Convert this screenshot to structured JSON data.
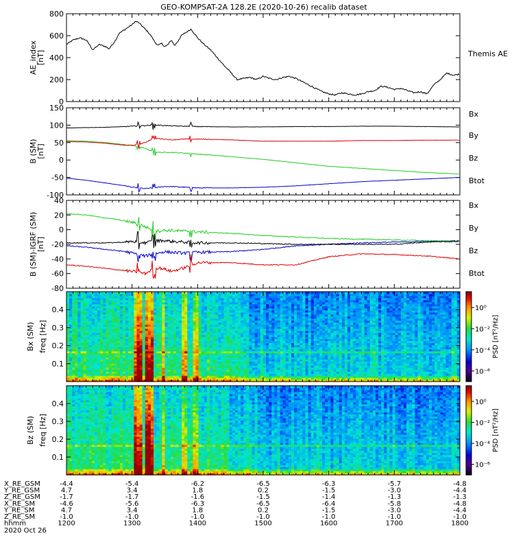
{
  "title": "GEO-KOMPSAT-2A 128.2E (2020-10-26) recalib dataset",
  "colors": {
    "bx": "#0000cc",
    "by": "#22cc22",
    "bz": "#dd0000",
    "btot": "#000000"
  },
  "chart_data": [
    {
      "type": "line",
      "name": "ae_index",
      "ylabel_line1": "AE_index",
      "ylabel_line2": "[nT]",
      "ylim": [
        0,
        800
      ],
      "yticks": [
        "0",
        "200",
        "400",
        "600",
        "800"
      ],
      "legend": [
        "Themis AE"
      ],
      "series": [
        {
          "name": "Themis AE",
          "color": "#000000",
          "x": [
            1200,
            1210,
            1220,
            1230,
            1235,
            1240,
            1250,
            1260,
            1265,
            1270,
            1275,
            1280,
            1290,
            1300,
            1305,
            1310,
            1315,
            1320,
            1325,
            1330,
            1335,
            1340,
            1345,
            1350,
            1355,
            1360,
            1365,
            1370,
            1375,
            1380,
            1385,
            1390,
            1395,
            1400,
            1410,
            1420,
            1430,
            1440,
            1450,
            1460,
            1470,
            1480,
            1490,
            1500,
            1510,
            1520,
            1530,
            1540,
            1550,
            1560,
            1570,
            1580,
            1590,
            1600,
            1610,
            1620,
            1630,
            1640,
            1650,
            1660,
            1670,
            1680,
            1690,
            1700,
            1710,
            1720,
            1730,
            1740,
            1750,
            1760,
            1770,
            1780,
            1790,
            1800
          ],
          "values": [
            520,
            560,
            580,
            560,
            520,
            470,
            520,
            500,
            480,
            520,
            560,
            620,
            660,
            700,
            730,
            720,
            690,
            660,
            630,
            590,
            540,
            510,
            530,
            500,
            520,
            560,
            510,
            550,
            600,
            620,
            640,
            660,
            620,
            580,
            520,
            470,
            400,
            330,
            270,
            200,
            210,
            220,
            200,
            230,
            210,
            200,
            220,
            230,
            210,
            180,
            150,
            120,
            90,
            70,
            60,
            80,
            70,
            60,
            70,
            90,
            100,
            140,
            130,
            110,
            120,
            100,
            80,
            90,
            70,
            150,
            200,
            260,
            240,
            250
          ]
        }
      ]
    },
    {
      "type": "line",
      "name": "b_sm",
      "ylabel_line1": "B (SM)",
      "ylabel_line2": "[nT]",
      "ylim": [
        -100,
        150
      ],
      "yticks": [
        "-100",
        "-50",
        "0",
        "50",
        "100",
        "150"
      ],
      "legend": [
        "Bx",
        "By",
        "Bz",
        "Btot"
      ],
      "series": [
        {
          "name": "Bx",
          "color": "#0000cc",
          "x": [
            1200,
            1230,
            1260,
            1290,
            1300,
            1310,
            1320,
            1330,
            1340,
            1350,
            1360,
            1380,
            1400,
            1450,
            1500,
            1550,
            1600,
            1650,
            1700,
            1750,
            1800
          ],
          "values": [
            -52,
            -58,
            -66,
            -74,
            -78,
            -80,
            -82,
            -80,
            -78,
            -76,
            -76,
            -78,
            -80,
            -80,
            -78,
            -74,
            -68,
            -62,
            -58,
            -54,
            -50
          ]
        },
        {
          "name": "By",
          "color": "#22cc22",
          "x": [
            1200,
            1230,
            1260,
            1290,
            1300,
            1310,
            1320,
            1330,
            1340,
            1350,
            1360,
            1380,
            1400,
            1450,
            1500,
            1550,
            1600,
            1650,
            1700,
            1750,
            1800
          ],
          "values": [
            56,
            54,
            50,
            44,
            42,
            38,
            34,
            25,
            22,
            22,
            22,
            20,
            17,
            10,
            2,
            -8,
            -18,
            -24,
            -30,
            -36,
            -40
          ]
        },
        {
          "name": "Bz",
          "color": "#dd0000",
          "x": [
            1200,
            1230,
            1260,
            1290,
            1300,
            1310,
            1320,
            1330,
            1340,
            1350,
            1360,
            1380,
            1400,
            1450,
            1500,
            1550,
            1600,
            1650,
            1700,
            1750,
            1800
          ],
          "values": [
            53,
            52,
            48,
            42,
            42,
            45,
            50,
            60,
            62,
            60,
            58,
            60,
            60,
            58,
            54,
            54,
            54,
            56,
            56,
            57,
            57
          ]
        },
        {
          "name": "Btot",
          "color": "#000000",
          "x": [
            1200,
            1230,
            1260,
            1290,
            1300,
            1310,
            1320,
            1330,
            1340,
            1350,
            1360,
            1380,
            1400,
            1450,
            1500,
            1550,
            1600,
            1650,
            1700,
            1750,
            1800
          ],
          "values": [
            92,
            93,
            94,
            96,
            97,
            98,
            99,
            100,
            100,
            99,
            98,
            97,
            96,
            95,
            95,
            96,
            96,
            97,
            97,
            96,
            95
          ]
        }
      ]
    },
    {
      "type": "line",
      "name": "b_minus_igrf",
      "ylabel_line1": "B (SM)-IGRF (SM)",
      "ylabel_line2": "[nT]",
      "ylim": [
        -80,
        40
      ],
      "yticks": [
        "-80",
        "-60",
        "-40",
        "-20",
        "0",
        "20",
        "40"
      ],
      "legend": [
        "Bx",
        "By",
        "Bz",
        "Btot"
      ],
      "series": [
        {
          "name": "Bx",
          "color": "#0000cc",
          "x": [
            1200,
            1230,
            1260,
            1290,
            1300,
            1310,
            1320,
            1330,
            1340,
            1350,
            1360,
            1380,
            1400,
            1450,
            1500,
            1550,
            1600,
            1650,
            1700,
            1750,
            1800
          ],
          "values": [
            -22,
            -24,
            -27,
            -30,
            -32,
            -34,
            -36,
            -34,
            -32,
            -30,
            -31,
            -32,
            -31,
            -30,
            -27,
            -22,
            -20,
            -18,
            -17,
            -16,
            -15
          ]
        },
        {
          "name": "By",
          "color": "#22cc22",
          "x": [
            1200,
            1230,
            1260,
            1290,
            1300,
            1310,
            1320,
            1330,
            1340,
            1350,
            1360,
            1380,
            1400,
            1450,
            1500,
            1550,
            1600,
            1650,
            1700,
            1750,
            1800
          ],
          "values": [
            22,
            20,
            16,
            12,
            10,
            8,
            4,
            0,
            -2,
            -1,
            -1,
            -2,
            -3,
            -5,
            -8,
            -10,
            -12,
            -13,
            -14,
            -15,
            -16
          ]
        },
        {
          "name": "Bz",
          "color": "#dd0000",
          "x": [
            1200,
            1230,
            1260,
            1290,
            1300,
            1310,
            1320,
            1330,
            1340,
            1350,
            1360,
            1380,
            1400,
            1450,
            1500,
            1550,
            1600,
            1650,
            1700,
            1750,
            1800
          ],
          "values": [
            -48,
            -50,
            -53,
            -56,
            -57,
            -58,
            -60,
            -55,
            -52,
            -54,
            -57,
            -52,
            -45,
            -45,
            -48,
            -48,
            -37,
            -33,
            -34,
            -36,
            -40
          ]
        },
        {
          "name": "Btot",
          "color": "#000000",
          "x": [
            1200,
            1230,
            1260,
            1290,
            1300,
            1310,
            1320,
            1330,
            1340,
            1350,
            1360,
            1380,
            1400,
            1450,
            1500,
            1550,
            1600,
            1650,
            1700,
            1750,
            1800
          ],
          "values": [
            -18,
            -18,
            -18,
            -17,
            -16,
            -17,
            -18,
            -16,
            -15,
            -15,
            -16,
            -17,
            -18,
            -18,
            -19,
            -20,
            -20,
            -20,
            -20,
            -17,
            -16
          ]
        }
      ]
    },
    {
      "type": "heatmap",
      "name": "bx_spectrogram",
      "ylabel_line1": "Bx (SM)",
      "ylabel_line2": "freq [Hz]",
      "ylim": [
        0,
        0.5
      ],
      "yticks": [
        "0.1",
        "0.2",
        "0.3",
        "0.4"
      ],
      "colorbar": {
        "label": "PSD [nT²/Hz]",
        "ticks": [
          "10⁰",
          "10⁻²",
          "10⁻⁴",
          "10⁻⁶"
        ],
        "log_range": [
          -7,
          1.5
        ]
      }
    },
    {
      "type": "heatmap",
      "name": "bz_spectrogram",
      "ylabel_line1": "Bz (SM)",
      "ylabel_line2": "freq [Hz]",
      "ylim": [
        0,
        0.5
      ],
      "yticks": [
        "0.1",
        "0.2",
        "0.3",
        "0.4"
      ],
      "colorbar": {
        "label": "PSD [nT²/Hz]",
        "ticks": [
          "10⁰",
          "10⁻²",
          "10⁻⁴",
          "10⁻⁶"
        ],
        "log_range": [
          -7,
          1.5
        ]
      }
    }
  ],
  "xaxis": {
    "range": [
      1200,
      1800
    ],
    "rows": [
      {
        "label": "X_RE_GSM",
        "values": [
          "-4.4",
          "-5.4",
          "-6.2",
          "-6.5",
          "-6.3",
          "-5.7",
          "-4.8"
        ]
      },
      {
        "label": "Y_RE_GSM",
        "values": [
          "4.7",
          "3.4",
          "1.8",
          "0.2",
          "-1.5",
          "-3.0",
          "-4.4"
        ]
      },
      {
        "label": "Z_RE_GSM",
        "values": [
          "-1.7",
          "-1.7",
          "-1.6",
          "-1.5",
          "-1.4",
          "-1.3",
          "-1.3"
        ]
      },
      {
        "label": "X_RE_SM",
        "values": [
          "-4.6",
          "-5.6",
          "-6.3",
          "-6.5",
          "-6.4",
          "-5.8",
          "-4.8"
        ]
      },
      {
        "label": "Y_RE_SM",
        "values": [
          "4.7",
          "3.4",
          "1.8",
          "0.2",
          "-1.5",
          "-3.0",
          "-4.4"
        ]
      },
      {
        "label": "Z_RE_SM",
        "values": [
          "-1.0",
          "-1.0",
          "-1.0",
          "-1.0",
          "-1.0",
          "-1.0",
          "-1.0"
        ]
      },
      {
        "label": "hhmm",
        "values": [
          "1200",
          "1300",
          "1400",
          "1500",
          "1600",
          "1700",
          "1800"
        ]
      }
    ],
    "date": "2020 Oct 26"
  }
}
